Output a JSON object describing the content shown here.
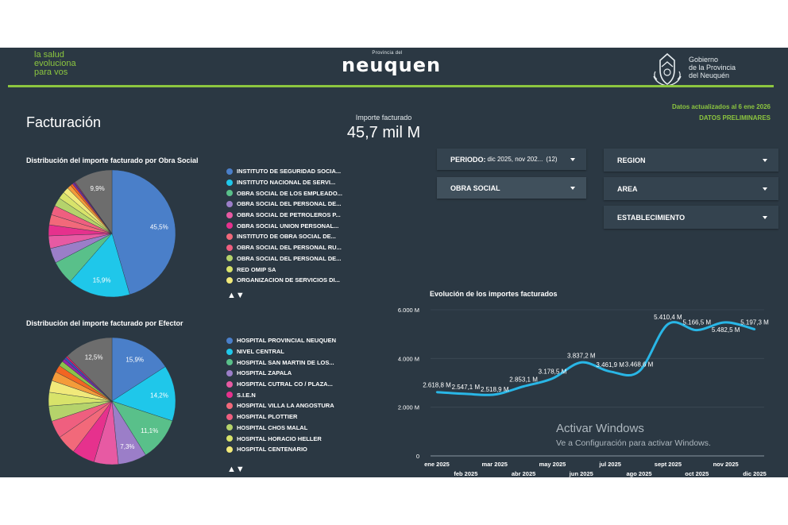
{
  "header": {
    "tagline": [
      "la salud",
      "evoluciona",
      "para vos"
    ],
    "logo_small": "Provincia del",
    "logo_big": "neuquen",
    "gov_lines": [
      "Gobierno",
      "de la Provincia",
      "del Neuquén"
    ]
  },
  "status": {
    "updated": "Datos actualizados al 6 ene 2026",
    "preliminary": "DATOS PRELIMINARES"
  },
  "page_title": "Facturación",
  "kpi": {
    "label": "Importe facturado",
    "value": "45,7 mil M"
  },
  "pie_obra": {
    "title": "Distribución del importe facturado por Obra Social",
    "legend": [
      {
        "label": "INSTITUTO DE SEGURIDAD SOCIA...",
        "color": "#4a7fc9"
      },
      {
        "label": "INSTITUTO NACIONAL DE SERVI...",
        "color": "#1fc7ea"
      },
      {
        "label": "OBRA SOCIAL DE LOS EMPLEADO...",
        "color": "#59c08a"
      },
      {
        "label": "OBRA SOCIAL DEL PERSONAL DE...",
        "color": "#9b7ec8"
      },
      {
        "label": "OBRA SOCIAL DE PETROLEROS P...",
        "color": "#e75aa3"
      },
      {
        "label": "OBRA SOCIAL UNION PERSONAL...",
        "color": "#e6318d"
      },
      {
        "label": "INSTITUTO DE OBRA SOCIAL DE...",
        "color": "#f2697a"
      },
      {
        "label": "OBRA SOCIAL DEL PERSONAL RU...",
        "color": "#ef5f7f"
      },
      {
        "label": "OBRA SOCIAL DEL PERSONAL DE...",
        "color": "#b5d36b"
      },
      {
        "label": "RED OMIP SA",
        "color": "#d8e36a"
      },
      {
        "label": "ORGANIZACION DE SERVICIOS DI...",
        "color": "#f1e97a"
      }
    ]
  },
  "pie_efector": {
    "title": "Distribución del importe facturado por Efector",
    "legend": [
      {
        "label": "HOSPITAL PROVINCIAL NEUQUEN",
        "color": "#4a7fc9"
      },
      {
        "label": "NIVEL CENTRAL",
        "color": "#1fc7ea"
      },
      {
        "label": "HOSPITAL SAN MARTIN DE LOS...",
        "color": "#59c08a"
      },
      {
        "label": "HOSPITAL ZAPALA",
        "color": "#9b7ec8"
      },
      {
        "label": "HOSPITAL CUTRAL CO / PLAZA...",
        "color": "#e75aa3"
      },
      {
        "label": "S.I.E.N",
        "color": "#e6318d"
      },
      {
        "label": "HOSPITAL VILLA LA ANGOSTURA",
        "color": "#f2697a"
      },
      {
        "label": "HOSPITAL PLOTTIER",
        "color": "#ef5f7f"
      },
      {
        "label": "HOSPITAL CHOS MALAL",
        "color": "#b5d36b"
      },
      {
        "label": "HOSPITAL HORACIO HELLER",
        "color": "#d8e36a"
      },
      {
        "label": "HOSPITAL CENTENARIO",
        "color": "#f1e97a"
      }
    ]
  },
  "pager_arrows": "▲▼",
  "filters": {
    "periodo_label": "PERIODO:",
    "periodo_value": "dic 2025, nov 202...",
    "periodo_count": "(12)",
    "obra_social": "OBRA SOCIAL",
    "region": "REGION",
    "area": "AREA",
    "establecimiento": "ESTABLECIMIENTO"
  },
  "line_title": "Evolución de los importes facturados",
  "watermark": {
    "line1": "Activar Windows",
    "line2": "Ve a Configuración para activar Windows."
  },
  "chart_data": [
    {
      "type": "pie",
      "title": "Distribución del importe facturado por Obra Social",
      "labels": [
        "INSTITUTO DE SEGURIDAD SOCIA...",
        "INSTITUTO NACIONAL DE SERVI...",
        "OBRA SOCIAL DE LOS EMPLEADO...",
        "OBRA SOCIAL DEL PERSONAL DE...",
        "OBRA SOCIAL DE PETROLEROS P...",
        "OBRA SOCIAL UNION PERSONAL...",
        "INSTITUTO DE OBRA SOCIAL DE...",
        "OBRA SOCIAL DEL PERSONAL RU...",
        "OBRA SOCIAL DEL PERSONAL DE...",
        "RED OMIP SA",
        "ORGANIZACION DE SERVICIOS DI...",
        "",
        "",
        "",
        "",
        "",
        ""
      ],
      "values": [
        45.5,
        15.9,
        6.0,
        3.8,
        3.2,
        2.8,
        2.6,
        2.4,
        2.2,
        1.8,
        1.5,
        1.0,
        0.6,
        0.4,
        0.2,
        0.2,
        9.9
      ],
      "colors": [
        "#4a7fc9",
        "#1fc7ea",
        "#59c08a",
        "#9b7ec8",
        "#e75aa3",
        "#e6318d",
        "#f2697a",
        "#ef5f7f",
        "#b5d36b",
        "#d8e36a",
        "#f1e97a",
        "#f49b3a",
        "#f26522",
        "#8e24aa",
        "#3f51b5",
        "#e91e63",
        "#6d6d6d"
      ],
      "data_labels": [
        "45,5%",
        "15,9%",
        "",
        "",
        "",
        "",
        "",
        "",
        "",
        "",
        "",
        "",
        "",
        "",
        "",
        "",
        "9,9%"
      ]
    },
    {
      "type": "pie",
      "title": "Distribución del importe facturado por Efector",
      "labels": [
        "HOSPITAL PROVINCIAL NEUQUEN",
        "NIVEL CENTRAL",
        "HOSPITAL SAN MARTIN DE LOS...",
        "HOSPITAL ZAPALA",
        "HOSPITAL CUTRAL CO / PLAZA...",
        "S.I.E.N",
        "HOSPITAL VILLA LA ANGOSTURA",
        "HOSPITAL PLOTTIER",
        "HOSPITAL CHOS MALAL",
        "HOSPITAL HORACIO HELLER",
        "HOSPITAL CENTENARIO",
        "",
        "",
        "",
        "",
        "",
        "",
        ""
      ],
      "values": [
        15.9,
        14.2,
        11.1,
        7.3,
        6.2,
        5.8,
        5.0,
        4.5,
        3.9,
        3.5,
        3.0,
        2.4,
        1.8,
        1.3,
        0.8,
        0.6,
        0.4,
        12.5
      ],
      "colors": [
        "#4a7fc9",
        "#1fc7ea",
        "#59c08a",
        "#9b7ec8",
        "#e75aa3",
        "#e6318d",
        "#f2697a",
        "#ef5f7f",
        "#b5d36b",
        "#d8e36a",
        "#f1e97a",
        "#f49b3a",
        "#f26522",
        "#8bc34a",
        "#8e24aa",
        "#3f51b5",
        "#e91e63",
        "#6d6d6d"
      ],
      "data_labels": [
        "15,9%",
        "14,2%",
        "11,1%",
        "7,3%",
        "",
        "",
        "",
        "",
        "",
        "",
        "",
        "",
        "",
        "",
        "",
        "",
        "",
        "12,5%"
      ]
    },
    {
      "type": "line",
      "title": "Evolución de los importes facturados",
      "categories": [
        "ene 2025",
        "feb 2025",
        "mar 2025",
        "abr 2025",
        "may 2025",
        "jun 2025",
        "jul 2025",
        "ago 2025",
        "sept 2025",
        "oct 2025",
        "nov 2025",
        "dic 2025"
      ],
      "values": [
        2618.8,
        2547.1,
        2518.9,
        2853.1,
        3178.5,
        3837.2,
        3461.9,
        3468.6,
        5410.4,
        5166.5,
        5482.5,
        5197.3
      ],
      "data_labels": [
        "2.618,8 M",
        "2.547,1 M",
        "2.518,9 M",
        "2.853,1 M",
        "3.178,5 M",
        "3.837,2 M",
        "3.461,9 M",
        "3.468,6 M",
        "5.410,4 M",
        "5.166,5 M",
        "5.482,5 M",
        "5.197,3 M"
      ],
      "y_ticks": [
        "0",
        "2.000 M",
        "4.000 M",
        "6.000 M"
      ],
      "ylim": [
        0,
        6000
      ],
      "color": "#29b6e6",
      "grid": true
    }
  ]
}
